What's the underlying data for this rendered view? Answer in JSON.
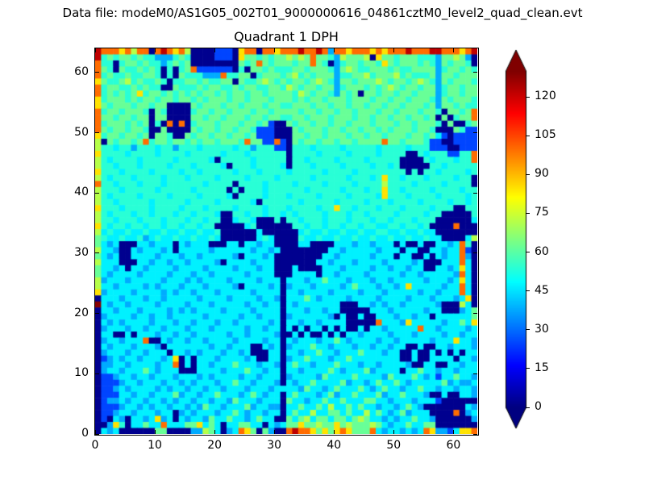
{
  "figure": {
    "suptitle": "Data file: modeM0/AS1G05_002T01_9000000616_04861cztM0_level2_quad_clean.evt",
    "background": "#ffffff"
  },
  "chart_data": {
    "type": "heatmap",
    "title": "Quadrant 1 DPH",
    "xlabel": "",
    "ylabel": "",
    "xlim": [
      0,
      64
    ],
    "ylim": [
      0,
      64
    ],
    "xticks": [
      0,
      10,
      20,
      30,
      40,
      50,
      60
    ],
    "yticks": [
      0,
      10,
      20,
      30,
      40,
      50,
      60
    ],
    "grid_size": [
      64,
      64
    ],
    "colormap": "jet",
    "vmin": 0,
    "vmax": 130,
    "grid": false,
    "colorbar": {
      "ticks": [
        0,
        15,
        30,
        45,
        60,
        75,
        90,
        105,
        120
      ],
      "extend": "both"
    },
    "value_palette": {
      "0": 2,
      "1": 25,
      "2": 38,
      "3": 47,
      "4": 54,
      "5": 62,
      "6": 72,
      "7": 85,
      "8": 100,
      "9": 122,
      "a": 129
    },
    "rows_top_to_bottom": [
      "9888786880898786000011107880887888988982887888787888988899888789",
      "9454554544222454000011107554545565658554265556075545554442556520",
      "8440455454424545000000005458545554558540245545547545554542545540",
      "8540544545404045811111104055454445545554256544555454455552455454",
      "8454454455404054442228445504555456454555244556455564544452554555",
      "7544564544540445545445505445654545545654255455565455456542545554",
      "8455445454400544454554454554455465455455245554545654554552455455",
      "8454545745545454545545455455455554654554254505545545545552455455",
      "7455545455455455454555455455545554545545554555455455455542545554",
      "7545554554550000545554554555455445554554554554554554555452554544",
      "8455455540540000455455455545545555455455455455545545554554055458",
      "8554554550550000554554555455455445545554555455455455455450504558",
      "8455545450408080455545554554510054554554554555455545545554050045",
      "8545545540050000545545545541110005455545545545545455545540005411",
      "7455455450554005455455455451110005545545554554554555455453101111",
      "6054554584554554545545554855118105455455455455558554555411001111",
      "6443442444344244434444434424441104443444434444434444344411100111",
      "7444434444344443444443444344444404444344443444434444004344411448",
      "6434444344444344444304444434444404434444344443444440000434443448",
      "6443444344443444344443044434444304443444434444344340000044344444",
      "7444344443444434434444434443444434444434444344444444040443444434",
      "6434443444434443444434444344443444443444443444347443444344443440",
      "8443444344434444443444404444344443444434444344446444434444344440",
      "6444344444344444344444040444344444434444434443447443444434444344",
      "6434444344443444434444304444344434444344443444437444344443444434",
      "6443444443444443444434444430444444344444344443444344443444434434",
      "7444344443444434443444434444344434444344744344434443444434440044",
      "6434443443444344344430044344344343444434443443444434444344000004",
      "6443444344434443443440034430004044344434443444344344434440000003",
      "7434434434434434434400000340000004434434434434433443443400008000",
      "6343343343343343343340000003000000343343343343344334334330000000",
      "5433433423433433433430000003430000433433433433433433433433000036",
      "5323000332333032333000330332330000330000333233233303003003323840",
      "6332003233323033333233333323323000000003323333323330330033233810",
      "5323003333233323323333320333230000000033233333233303300303233820",
      "6333000332332332333320333323330000000332333233332333323000333830",
      "5332303323333233332333323332330003000033323333233233233003323730",
      "5323333233332333233233333233330003333033233332333332332333332830",
      "6233323333323332323333233332333033323353332333233233333233323730",
      "6332333323233323332333320333323023332333323533323323733333233830",
      "7233332333323233233323333323333033233332333323332333332332333830",
      "0333233323323333323333233332332033353233332333323333233323332370",
      "a323323333233332333233333233233032333333300033232332333332000630",
      "0332333233332323233332333323333033323323300000333233333233000235",
      "0233332332332333332333332332333023333332030030033323323303333335",
      "0323233332333233233323323333323033233233330000083332733333233537",
      "0233323323323332333233333233233030303303030030332333338332333323",
      "0330030333233233233333233233332003030030303323333233323333233233",
      "0233233380032332332333323333233032333233532333323323333323337332",
      "0323332333203333333233233300323023335332333233233233003003323332",
      "0233323323330332323332332300033033233533233353332330030030303033",
      "0123233233323703033323333230033023353332335333333330030033330332",
      "0223323333233803033233353332332035332333533323323333200330033233",
      "0233233353233300033332333533233033233335323335233330335332332333",
      "0112332332333233323233332332333023333253333533332533353231335332",
      "0111233233323323233323353323332032335333352332353353233333523223",
      "0112323333232332332332333233323333253323533353235332335332332332",
      "0111332332333523323353332353233035333235233533352335333200300332",
      "0122323323323233233233253332333053323353353335533233323331000000",
      "0111233232332332325332333523322033533536335353323323532000000032",
      "0112332333233023233323353233233035336335535336353235233300008023",
      "0103203323723032332533533235330053563553553565332323353320000002",
      "0027403353383335573530335533032355755655756555653233533550000000",
      "0323000000550000226530238750520089887575787555832332323872213778"
    ]
  }
}
